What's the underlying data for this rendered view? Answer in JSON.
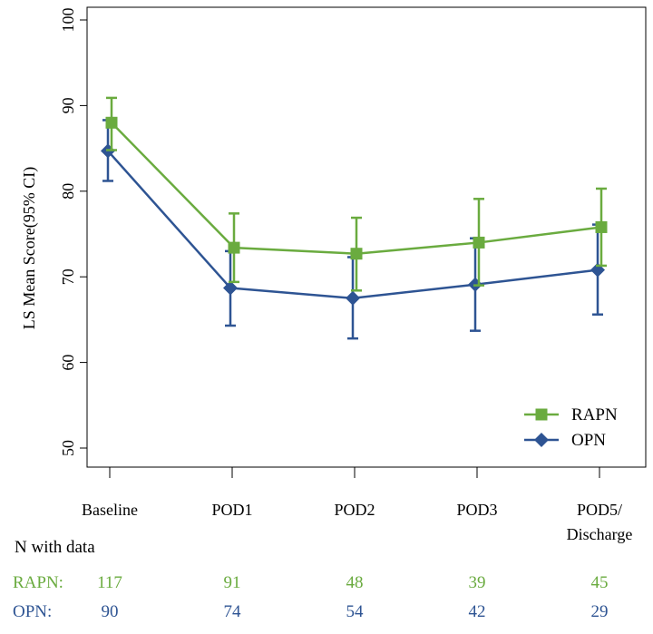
{
  "chart_data": {
    "type": "line",
    "ylabel": "LS Mean Score(95% CI)",
    "ylim": [
      50,
      100
    ],
    "yticks": [
      50,
      60,
      70,
      80,
      90,
      100
    ],
    "categories": [
      "Baseline",
      "POD1",
      "POD2",
      "POD3",
      "POD5/ Discharge"
    ],
    "category_lines": [
      [
        "Baseline"
      ],
      [
        "POD1"
      ],
      [
        "POD2"
      ],
      [
        "POD3"
      ],
      [
        "POD5/",
        "Discharge"
      ]
    ],
    "legend_position": "bottom-right",
    "series": [
      {
        "name": "RAPN",
        "color": "#6aab3f",
        "marker": "square",
        "values": [
          88.0,
          73.4,
          72.7,
          74.0,
          75.8
        ],
        "ci_low": [
          84.8,
          69.4,
          68.4,
          69.0,
          71.3
        ],
        "ci_high": [
          90.9,
          77.4,
          76.9,
          79.1,
          80.3
        ],
        "n_label": "RAPN:",
        "n": [
          "117",
          "91",
          "48",
          "39",
          "45"
        ]
      },
      {
        "name": "OPN",
        "color": "#2e5493",
        "marker": "diamond",
        "values": [
          84.7,
          68.7,
          67.5,
          69.1,
          70.8
        ],
        "ci_low": [
          81.2,
          64.3,
          62.8,
          63.7,
          65.6
        ],
        "ci_high": [
          88.3,
          73.0,
          72.3,
          74.5,
          76.1
        ],
        "n_label": "OPN:",
        "n": [
          "90",
          "74",
          "54",
          "42",
          "29"
        ]
      }
    ],
    "n_header": "N with data"
  }
}
